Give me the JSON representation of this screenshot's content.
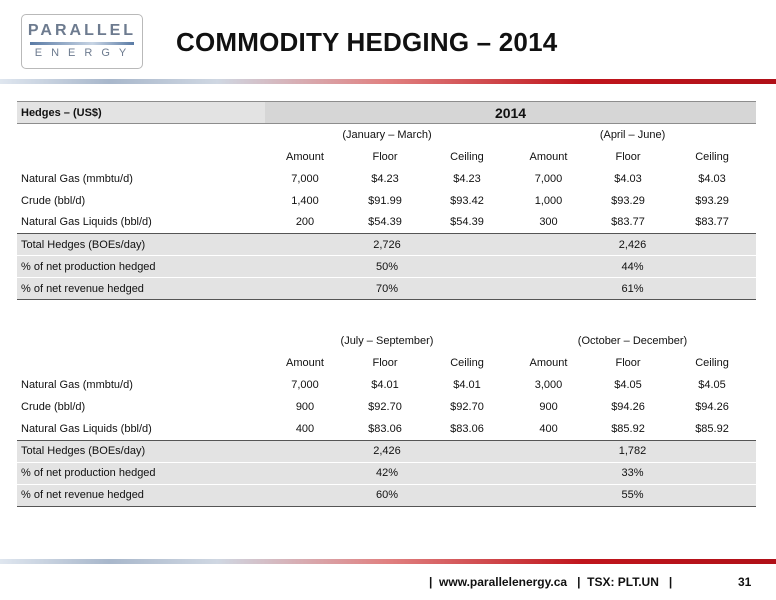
{
  "logo": {
    "top": "PARALLEL",
    "bottom": "ENERGY"
  },
  "title": "COMMODITY HEDGING – 2014",
  "table_header": {
    "label": "Hedges – (US$)",
    "year": "2014"
  },
  "column_labels": {
    "amount": "Amount",
    "floor": "Floor",
    "ceiling": "Ceiling"
  },
  "blocks": [
    {
      "periods": [
        "(January – March)",
        "(April – June)"
      ],
      "rows": [
        {
          "label": "Natural Gas (mmbtu/d)",
          "values": [
            "7,000",
            "$4.23",
            "$4.23",
            "7,000",
            "$4.03",
            "$4.03"
          ]
        },
        {
          "label": "Crude (bbl/d)",
          "values": [
            "1,400",
            "$91.99",
            "$93.42",
            "1,000",
            "$93.29",
            "$93.29"
          ]
        },
        {
          "label": "Natural Gas Liquids (bbl/d)",
          "values": [
            "200",
            "$54.39",
            "$54.39",
            "300",
            "$83.77",
            "$83.77"
          ]
        }
      ],
      "summary": [
        {
          "label": "Total Hedges (BOEs/day)",
          "values": [
            "2,726",
            "2,426"
          ]
        },
        {
          "label": "% of net production hedged",
          "values": [
            "50%",
            "44%"
          ]
        },
        {
          "label": "% of net revenue hedged",
          "values": [
            "70%",
            "61%"
          ]
        }
      ]
    },
    {
      "periods": [
        "(July – September)",
        "(October – December)"
      ],
      "rows": [
        {
          "label": "Natural Gas (mmbtu/d)",
          "values": [
            "7,000",
            "$4.01",
            "$4.01",
            "3,000",
            "$4.05",
            "$4.05"
          ]
        },
        {
          "label": "Crude (bbl/d)",
          "values": [
            "900",
            "$92.70",
            "$92.70",
            "900",
            "$94.26",
            "$94.26"
          ]
        },
        {
          "label": "Natural Gas Liquids (bbl/d)",
          "values": [
            "400",
            "$83.06",
            "$83.06",
            "400",
            "$85.92",
            "$85.92"
          ]
        }
      ],
      "summary": [
        {
          "label": "Total Hedges (BOEs/day)",
          "values": [
            "2,426",
            "1,782"
          ]
        },
        {
          "label": "% of net production hedged",
          "values": [
            "42%",
            "33%"
          ]
        },
        {
          "label": "% of net revenue hedged",
          "values": [
            "60%",
            "55%"
          ]
        }
      ]
    }
  ],
  "footer": {
    "text": "|  www.parallelenergy.ca   |  TSX: PLT.UN   |",
    "page": "31"
  }
}
